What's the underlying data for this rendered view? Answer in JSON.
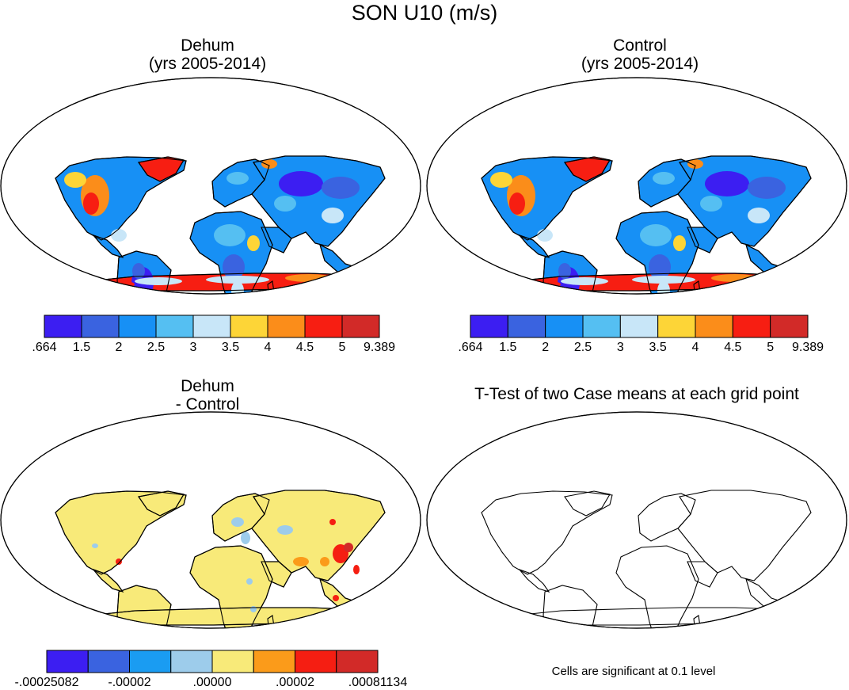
{
  "title": "SON U10 (m/s)",
  "panels": [
    {
      "id": "dehum",
      "title_line1": "Dehum",
      "title_line2": "(yrs 2005-2014)"
    },
    {
      "id": "control",
      "title_line1": "Control",
      "title_line2": "(yrs 2005-2014)"
    },
    {
      "id": "diff",
      "title_line1": "Dehum",
      "title_line2": "- Control"
    },
    {
      "id": "ttest",
      "title_line1": "T-Test of two Case means at each grid point"
    }
  ],
  "colorbars": {
    "absolute": {
      "colors": [
        "#3c1ef2",
        "#3a63e0",
        "#1790f5",
        "#55bff2",
        "#c8e6f8",
        "#fdd537",
        "#fb8d1a",
        "#f71e12",
        "#d22a28"
      ],
      "labels": [
        ".664",
        "1.5",
        "2",
        "2.5",
        "3",
        "3.5",
        "4",
        "4.5",
        "5",
        "9.389"
      ]
    },
    "difference": {
      "colors": [
        "#3c1ef2",
        "#3a63e0",
        "#1a9cf2",
        "#9dcceb",
        "#f8ea79",
        "#fb9b1a",
        "#f51e12",
        "#d22a28"
      ],
      "labels": [
        "-.00025082",
        "-.00002",
        ".00000",
        ".00002",
        ".00081134"
      ]
    }
  },
  "note": "Cells are significant at 0.1 level",
  "chart_data": [
    {
      "type": "heatmap",
      "title": "Dehum (yrs 2005-2014)",
      "variable": "U10",
      "units": "m/s",
      "season": "SON",
      "colorbar_labels": [
        ".664",
        "1.5",
        "2",
        "2.5",
        "3",
        "3.5",
        "4",
        "4.5",
        "5",
        "9.389"
      ]
    },
    {
      "type": "heatmap",
      "title": "Control (yrs 2005-2014)",
      "variable": "U10",
      "units": "m/s",
      "season": "SON",
      "colorbar_labels": [
        ".664",
        "1.5",
        "2",
        "2.5",
        "3",
        "3.5",
        "4",
        "4.5",
        "5",
        "9.389"
      ]
    },
    {
      "type": "heatmap",
      "title": "Dehum - Control",
      "variable": "U10",
      "units": "m/s",
      "season": "SON",
      "colorbar_labels": [
        "-.00025082",
        "-.00002",
        ".00000",
        ".00002",
        ".00081134"
      ]
    },
    {
      "type": "heatmap",
      "title": "T-Test of two Case means at each grid point",
      "annotation": "Cells are significant at 0.1 level"
    }
  ]
}
